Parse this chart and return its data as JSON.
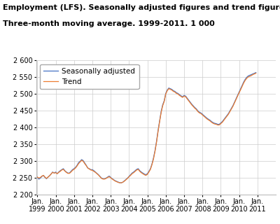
{
  "title_line1": "Employment (LFS). Seasonally adjusted figures and trend figures.",
  "title_line2": "Three-month moving average. 1999-2011. 1 000",
  "ylim": [
    2200,
    2600
  ],
  "yticks": [
    2200,
    2250,
    2300,
    2350,
    2400,
    2450,
    2500,
    2550,
    2600
  ],
  "xtick_years": [
    1999,
    2000,
    2001,
    2002,
    2003,
    2004,
    2005,
    2006,
    2007,
    2008,
    2009,
    2010,
    2011
  ],
  "sa_color": "#4472C4",
  "trend_color": "#ED7D31",
  "legend_labels": [
    "Seasonally adjusted",
    "Trend"
  ],
  "background_color": "#ffffff",
  "grid_color": "#cccccc",
  "title_fontsize": 8,
  "tick_fontsize": 7,
  "legend_fontsize": 7.5,
  "sa_data": [
    2253,
    2247,
    2250,
    2255,
    2258,
    2252,
    2248,
    2253,
    2257,
    2262,
    2268,
    2265,
    2268,
    2263,
    2268,
    2272,
    2275,
    2278,
    2272,
    2268,
    2265,
    2265,
    2270,
    2275,
    2278,
    2282,
    2288,
    2296,
    2300,
    2305,
    2302,
    2295,
    2288,
    2280,
    2278,
    2275,
    2275,
    2272,
    2268,
    2264,
    2260,
    2255,
    2250,
    2248,
    2248,
    2250,
    2253,
    2256,
    2252,
    2248,
    2245,
    2242,
    2240,
    2238,
    2236,
    2236,
    2238,
    2242,
    2246,
    2250,
    2255,
    2260,
    2265,
    2268,
    2272,
    2276,
    2278,
    2272,
    2268,
    2265,
    2262,
    2260,
    2263,
    2270,
    2278,
    2292,
    2310,
    2332,
    2360,
    2392,
    2420,
    2448,
    2468,
    2480,
    2502,
    2512,
    2518,
    2516,
    2514,
    2510,
    2508,
    2504,
    2502,
    2498,
    2495,
    2492,
    2496,
    2494,
    2488,
    2482,
    2476,
    2470,
    2465,
    2460,
    2456,
    2450,
    2446,
    2444,
    2440,
    2436,
    2432,
    2428,
    2425,
    2422,
    2418,
    2415,
    2413,
    2412,
    2410,
    2410,
    2414,
    2418,
    2424,
    2430,
    2436,
    2442,
    2450,
    2458,
    2466,
    2476,
    2486,
    2496,
    2506,
    2516,
    2526,
    2536,
    2544,
    2550,
    2554,
    2556,
    2558,
    2560,
    2562,
    2564
  ],
  "trend_data": [
    2253,
    2250,
    2252,
    2256,
    2258,
    2253,
    2249,
    2253,
    2257,
    2262,
    2267,
    2265,
    2266,
    2263,
    2267,
    2270,
    2274,
    2276,
    2271,
    2267,
    2264,
    2264,
    2268,
    2273,
    2276,
    2280,
    2286,
    2293,
    2298,
    2303,
    2300,
    2293,
    2287,
    2280,
    2277,
    2274,
    2273,
    2270,
    2267,
    2263,
    2259,
    2254,
    2249,
    2247,
    2247,
    2249,
    2252,
    2254,
    2251,
    2247,
    2244,
    2241,
    2239,
    2237,
    2236,
    2236,
    2238,
    2241,
    2245,
    2249,
    2254,
    2258,
    2263,
    2266,
    2270,
    2274,
    2276,
    2270,
    2266,
    2263,
    2260,
    2258,
    2261,
    2268,
    2276,
    2290,
    2307,
    2330,
    2357,
    2389,
    2418,
    2445,
    2465,
    2478,
    2500,
    2510,
    2516,
    2514,
    2512,
    2508,
    2506,
    2502,
    2500,
    2496,
    2493,
    2490,
    2494,
    2492,
    2486,
    2480,
    2474,
    2468,
    2463,
    2458,
    2454,
    2448,
    2444,
    2442,
    2438,
    2434,
    2430,
    2426,
    2423,
    2420,
    2416,
    2413,
    2411,
    2410,
    2408,
    2408,
    2412,
    2416,
    2422,
    2428,
    2434,
    2440,
    2448,
    2456,
    2464,
    2474,
    2484,
    2494,
    2504,
    2513,
    2523,
    2533,
    2541,
    2547,
    2551,
    2553,
    2555,
    2558,
    2560,
    2562
  ]
}
